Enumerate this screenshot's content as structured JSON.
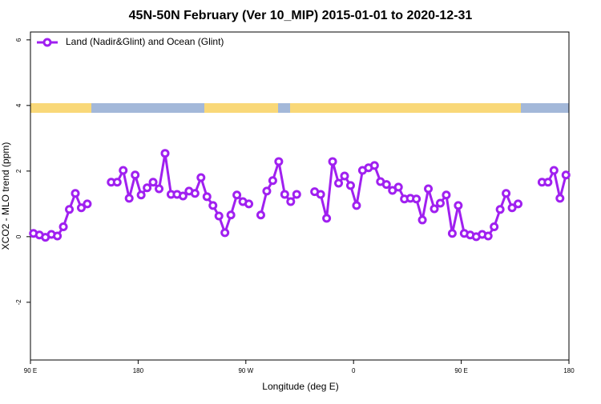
{
  "chart_data": {
    "type": "line",
    "title": "45N-50N February (Ver 10_MIP)   2015-01-01 to 2020-12-31",
    "xlabel": "Longitude (deg E)",
    "ylabel": "XCO2 - MLO trend (ppm)",
    "xlim": [
      90,
      540
    ],
    "ylim": [
      -3.76,
      6.24
    ],
    "xticks": [
      {
        "value": 90,
        "label": "90 E"
      },
      {
        "value": 180,
        "label": "180"
      },
      {
        "value": 270,
        "label": "90 W"
      },
      {
        "value": 360,
        "label": "0"
      },
      {
        "value": 450,
        "label": "90 E"
      },
      {
        "value": 540,
        "label": "180"
      }
    ],
    "yticks": [
      -2,
      0,
      2,
      4,
      6
    ],
    "legend": "top-left",
    "x": [
      92.5,
      97.5,
      102.5,
      107.5,
      112.5,
      117.5,
      122.5,
      127.5,
      132.5,
      137.5,
      142.5,
      147.5,
      152.5,
      157.5,
      162.5,
      167.5,
      172.5,
      177.5,
      182.5,
      187.5,
      192.5,
      197.5,
      202.5,
      207.5,
      212.5,
      217.5,
      222.5,
      227.5,
      232.5,
      237.5,
      242.5,
      247.5,
      252.5,
      257.5,
      262.5,
      267.5,
      272.5,
      277.5,
      282.5,
      287.5,
      292.5,
      297.5,
      302.5,
      307.5,
      312.5,
      317.5,
      322.5,
      327.5,
      332.5,
      337.5,
      342.5,
      347.5,
      352.5,
      357.5,
      362.5,
      367.5,
      372.5,
      377.5,
      382.5,
      387.5,
      392.5,
      397.5,
      402.5,
      407.5,
      412.5,
      417.5,
      422.5,
      427.5,
      432.5,
      437.5,
      442.5,
      447.5,
      452.5,
      457.5,
      462.5,
      467.5,
      472.5,
      477.5,
      482.5,
      487.5,
      492.5,
      497.5,
      502.5,
      507.5,
      512.5,
      517.5,
      522.5,
      527.5,
      532.5,
      537.5
    ],
    "series": [
      {
        "name": "Land (Nadir&Glint) and Ocean (Glint)",
        "color": "#a020f0",
        "values": [
          0.1,
          0.05,
          -0.02,
          0.07,
          0.02,
          0.3,
          0.83,
          1.32,
          0.88,
          1.0,
          null,
          null,
          null,
          1.66,
          1.66,
          2.02,
          1.17,
          1.88,
          1.27,
          1.49,
          1.66,
          1.46,
          2.54,
          1.29,
          1.29,
          1.24,
          1.39,
          1.32,
          1.8,
          1.22,
          0.95,
          0.63,
          0.12,
          0.66,
          1.27,
          1.07,
          1.0,
          null,
          0.66,
          1.39,
          1.71,
          2.29,
          1.29,
          1.07,
          1.29,
          null,
          null,
          1.37,
          1.29,
          0.56,
          2.29,
          1.63,
          1.85,
          1.56,
          0.95,
          2.02,
          2.1,
          2.17,
          1.68,
          1.59,
          1.41,
          1.51,
          1.15,
          1.17,
          1.15,
          0.51,
          1.46,
          0.85,
          1.02,
          1.27,
          0.1,
          0.95,
          0.1,
          0.05,
          0.0,
          0.07,
          0.02,
          0.3,
          0.83,
          1.32,
          0.88,
          1.0,
          null,
          null,
          null,
          1.66,
          1.66,
          2.02,
          1.17,
          1.88
        ]
      }
    ]
  }
}
